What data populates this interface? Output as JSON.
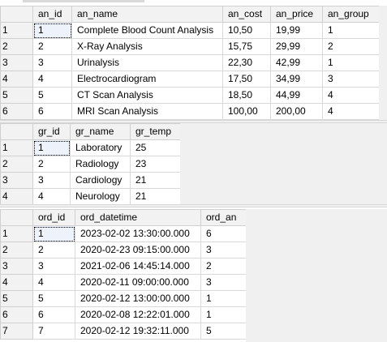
{
  "analyses": {
    "columns": [
      "an_id",
      "an_name",
      "an_cost",
      "an_price",
      "an_group"
    ],
    "rows": [
      [
        "1",
        "1",
        "Complete Blood Count Analysis",
        "10,50",
        "19,99",
        "1"
      ],
      [
        "2",
        "2",
        "X-Ray Analysis",
        "15,75",
        "29,99",
        "2"
      ],
      [
        "3",
        "3",
        "Urinalysis",
        "22,30",
        "42,99",
        "1"
      ],
      [
        "4",
        "4",
        "Electrocardiogram",
        "17,50",
        "34,99",
        "3"
      ],
      [
        "5",
        "5",
        "CT Scan Analysis",
        "18,50",
        "44,99",
        "4"
      ],
      [
        "6",
        "6",
        "MRI Scan Analysis",
        "100,00",
        "200,00",
        "4"
      ]
    ]
  },
  "groups": {
    "columns": [
      "gr_id",
      "gr_name",
      "gr_temp"
    ],
    "rows": [
      [
        "1",
        "1",
        "Laboratory",
        "25"
      ],
      [
        "2",
        "2",
        "Radiology",
        "23"
      ],
      [
        "3",
        "3",
        "Cardiology",
        "21"
      ],
      [
        "4",
        "4",
        "Neurology",
        "21"
      ]
    ]
  },
  "orders": {
    "columns": [
      "ord_id",
      "ord_datetime",
      "ord_an"
    ],
    "rows": [
      [
        "1",
        "1",
        "2023-02-02 13:30:00.000",
        "6"
      ],
      [
        "2",
        "2",
        "2020-02-23 09:15:00.000",
        "3"
      ],
      [
        "3",
        "3",
        "2021-02-06 14:45:14.000",
        "2"
      ],
      [
        "4",
        "4",
        "2020-02-11 09:00:00.000",
        "3"
      ],
      [
        "5",
        "5",
        "2020-02-12 13:00:00.000",
        "1"
      ],
      [
        "6",
        "6",
        "2020-02-08 12:22:01.000",
        "1"
      ],
      [
        "7",
        "7",
        "2020-02-12 19:32:11.000",
        "5"
      ]
    ]
  }
}
